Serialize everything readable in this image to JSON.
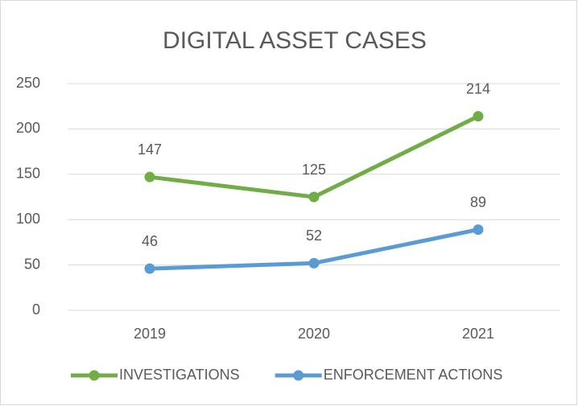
{
  "chart_data": {
    "type": "line",
    "title": "DIGITAL ASSET CASES",
    "categories": [
      "2019",
      "2020",
      "2021"
    ],
    "series": [
      {
        "name": "INVESTIGATIONS",
        "color": "#70ad47",
        "values": [
          147,
          125,
          214
        ]
      },
      {
        "name": "ENFORCEMENT ACTIONS",
        "color": "#5b9bd5",
        "values": [
          46,
          52,
          89
        ]
      }
    ],
    "ylim": [
      0,
      250
    ],
    "yticks": [
      0,
      50,
      100,
      150,
      200,
      250
    ],
    "grid": true,
    "legend": "bottom"
  }
}
